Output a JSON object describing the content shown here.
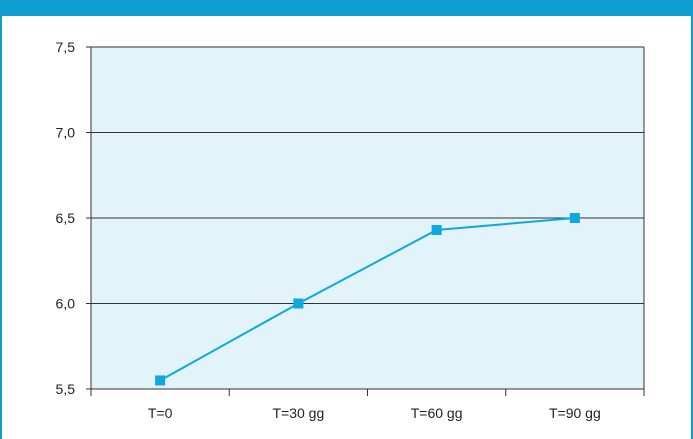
{
  "colors": {
    "header": "#0e9fd0",
    "plot_background": "#e2f3fa",
    "line": "#0ea8e0",
    "grid": "#333333"
  },
  "chart_data": {
    "type": "line",
    "title": "",
    "xlabel": "",
    "ylabel": "",
    "categories": [
      "T=0",
      "T=30 gg",
      "T=60 gg",
      "T=90 gg"
    ],
    "series": [
      {
        "values": [
          5.55,
          6.0,
          6.43,
          6.5
        ]
      }
    ],
    "ylim": [
      5.5,
      7.5
    ],
    "yticks": [
      5.5,
      6.0,
      6.5,
      7.0,
      7.5
    ],
    "ytick_labels": [
      "5,5",
      "6,0",
      "6,5",
      "7,0",
      "7,5"
    ],
    "grid": true,
    "legend": "none"
  }
}
